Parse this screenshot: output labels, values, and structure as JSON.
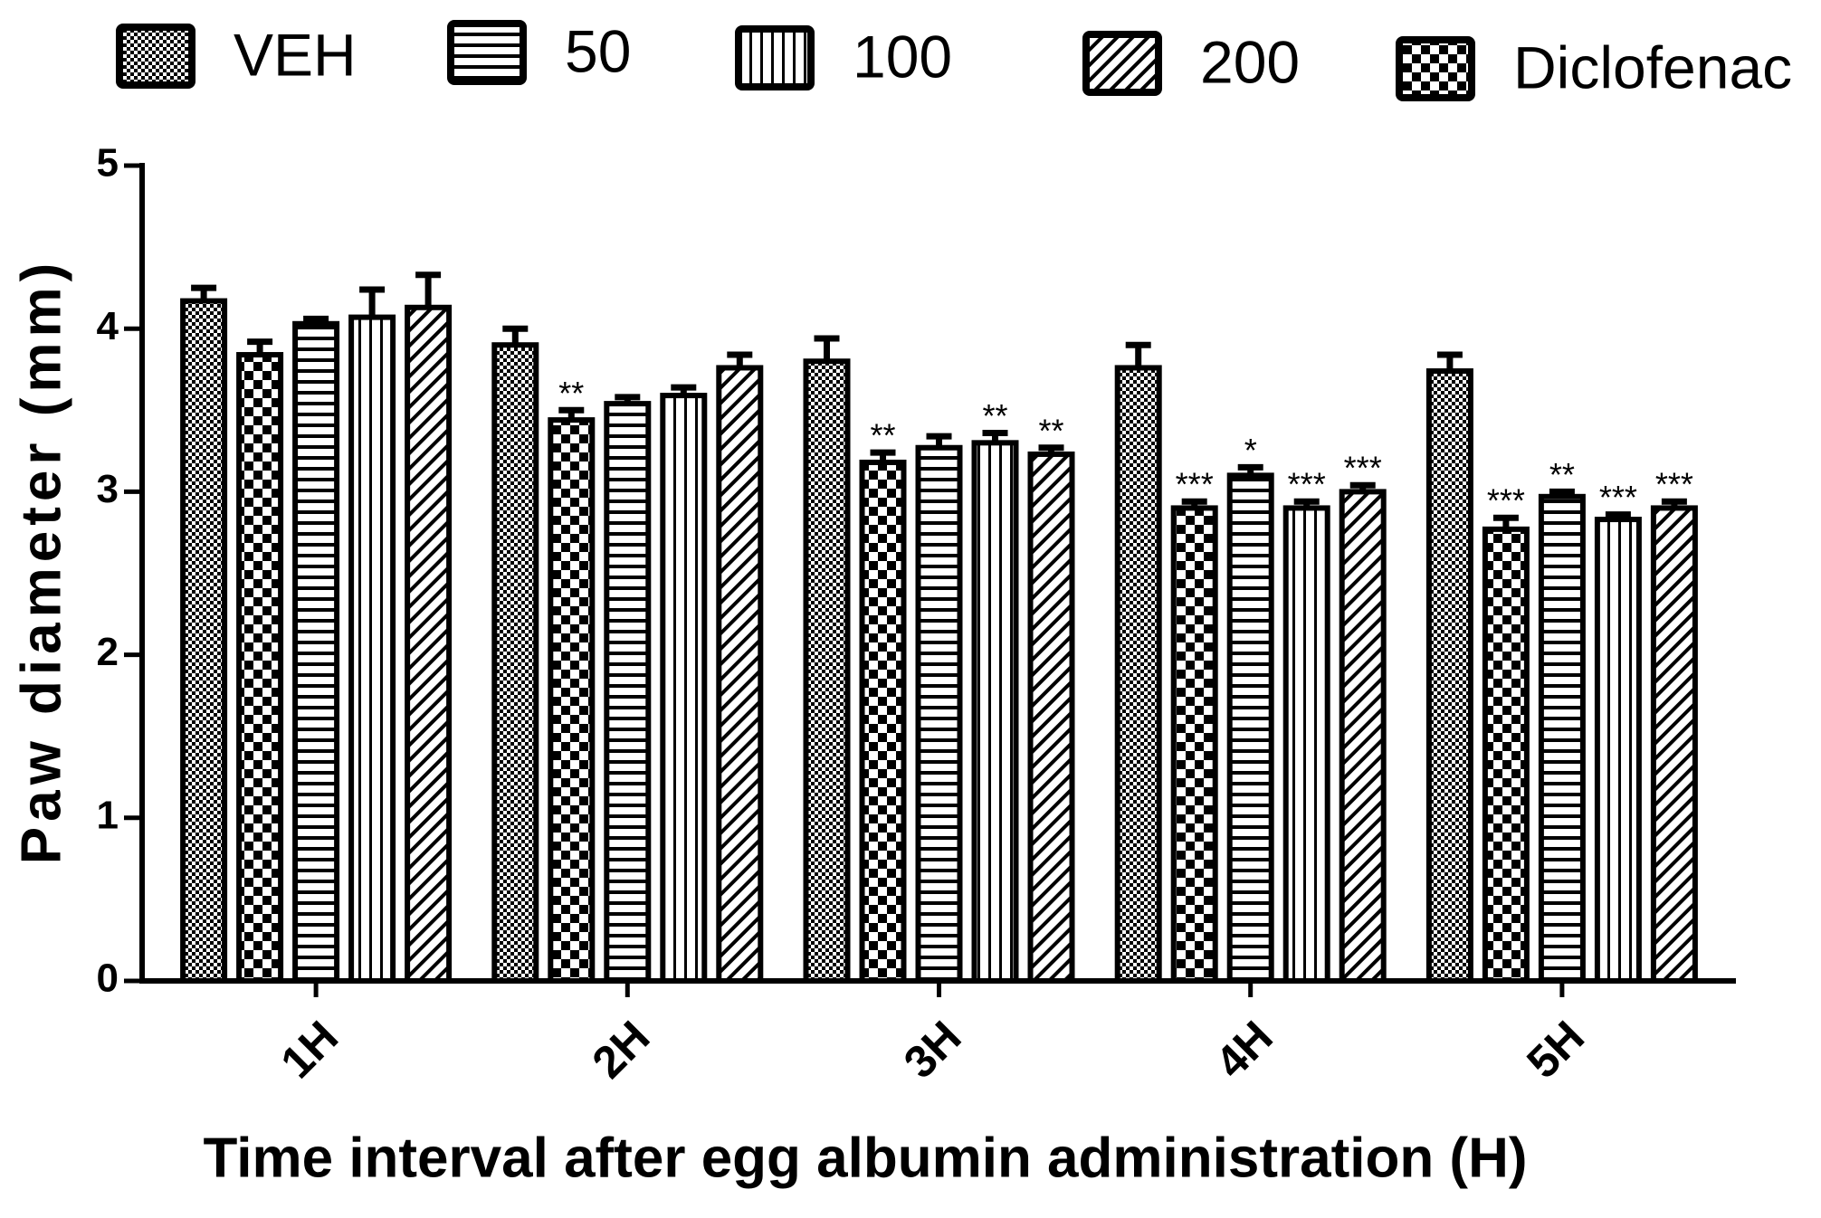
{
  "chart_data": {
    "type": "bar",
    "x_label": "Time interval after egg albumin administration (H)",
    "y_label": "Paw diameter (mm)",
    "categories": [
      "1H",
      "2H",
      "3H",
      "4H",
      "5H"
    ],
    "ylim": [
      0,
      5
    ],
    "yticks": [
      0,
      1,
      2,
      3,
      4,
      5
    ],
    "series": [
      {
        "name": "VEH",
        "color": "#000000",
        "pattern": "fine-check",
        "values": [
          4.17,
          3.9,
          3.8,
          3.76,
          3.74
        ],
        "errors": [
          0.08,
          0.1,
          0.14,
          0.14,
          0.1
        ],
        "annotations": [
          null,
          null,
          null,
          null,
          null
        ]
      },
      {
        "name": "Diclofenac",
        "color": "#000000",
        "pattern": "checker",
        "values": [
          3.84,
          3.44,
          3.18,
          2.9,
          2.77
        ],
        "errors": [
          0.08,
          0.06,
          0.06,
          0.04,
          0.07
        ],
        "annotations": [
          null,
          "**",
          "**",
          "***",
          "***"
        ]
      },
      {
        "name": "50",
        "color": "#000000",
        "pattern": "horizontal",
        "values": [
          4.03,
          3.54,
          3.27,
          3.1,
          2.97
        ],
        "errors": [
          0.03,
          0.04,
          0.07,
          0.05,
          0.03
        ],
        "annotations": [
          null,
          null,
          null,
          "*",
          "**"
        ]
      },
      {
        "name": "100",
        "color": "#000000",
        "pattern": "vertical",
        "values": [
          4.07,
          3.59,
          3.3,
          2.9,
          2.83
        ],
        "errors": [
          0.17,
          0.05,
          0.06,
          0.04,
          0.03
        ],
        "annotations": [
          null,
          null,
          "**",
          "***",
          "***"
        ]
      },
      {
        "name": "200",
        "color": "#000000",
        "pattern": "diagonal",
        "values": [
          4.13,
          3.76,
          3.23,
          3.0,
          2.9
        ],
        "errors": [
          0.2,
          0.08,
          0.04,
          0.04,
          0.04
        ],
        "annotations": [
          null,
          null,
          "**",
          "***",
          "***"
        ]
      }
    ]
  }
}
